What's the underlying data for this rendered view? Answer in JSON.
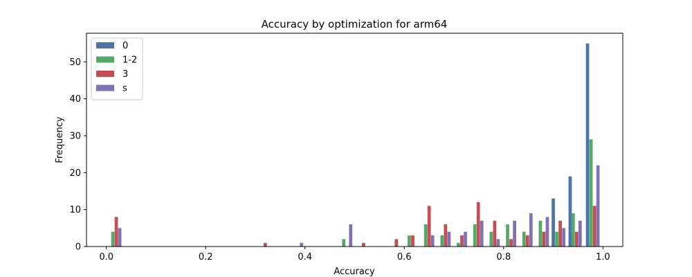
{
  "chart_data": {
    "type": "bar",
    "title": "Accuracy by optimization for arm64",
    "xlabel": "Accuracy",
    "ylabel": "Frequency",
    "xlim": [
      -0.04,
      1.04
    ],
    "ylim": [
      0,
      57.75
    ],
    "x_ticks": [
      "0.0",
      "0.2",
      "0.4",
      "0.6",
      "0.8",
      "1.0"
    ],
    "y_ticks": [
      "0",
      "10",
      "20",
      "30",
      "40",
      "50"
    ],
    "legend_position": "top-left",
    "bar_width": 0.0066,
    "series": [
      {
        "name": "0",
        "color": "#4c72b0",
        "x": [
          0.9,
          0.934,
          0.969
        ],
        "values": [
          13,
          19,
          55
        ]
      },
      {
        "name": "1-2",
        "color": "#55a868",
        "x": [
          0.013,
          0.478,
          0.61,
          0.643,
          0.676,
          0.709,
          0.742,
          0.775,
          0.808,
          0.841,
          0.874,
          0.907,
          0.94,
          0.976
        ],
        "values": [
          4,
          2,
          3,
          6,
          3,
          1,
          6,
          4,
          6,
          4,
          7,
          4,
          9,
          29
        ]
      },
      {
        "name": "3",
        "color": "#c44e52",
        "x": [
          0.02,
          0.32,
          0.518,
          0.584,
          0.617,
          0.65,
          0.683,
          0.716,
          0.749,
          0.782,
          0.815,
          0.848,
          0.881,
          0.914,
          0.947,
          0.983
        ],
        "values": [
          8,
          1,
          1,
          2,
          3,
          11,
          6,
          3,
          12,
          7,
          2,
          3,
          4,
          7,
          4,
          11
        ]
      },
      {
        "name": "s",
        "color": "#8172b2",
        "x": [
          0.027,
          0.393,
          0.492,
          0.657,
          0.69,
          0.723,
          0.756,
          0.789,
          0.822,
          0.855,
          0.888,
          0.921,
          0.954,
          0.99
        ],
        "values": [
          5,
          1,
          6,
          3,
          4,
          4,
          7,
          2,
          7,
          9,
          8,
          5,
          7,
          22
        ]
      }
    ]
  }
}
